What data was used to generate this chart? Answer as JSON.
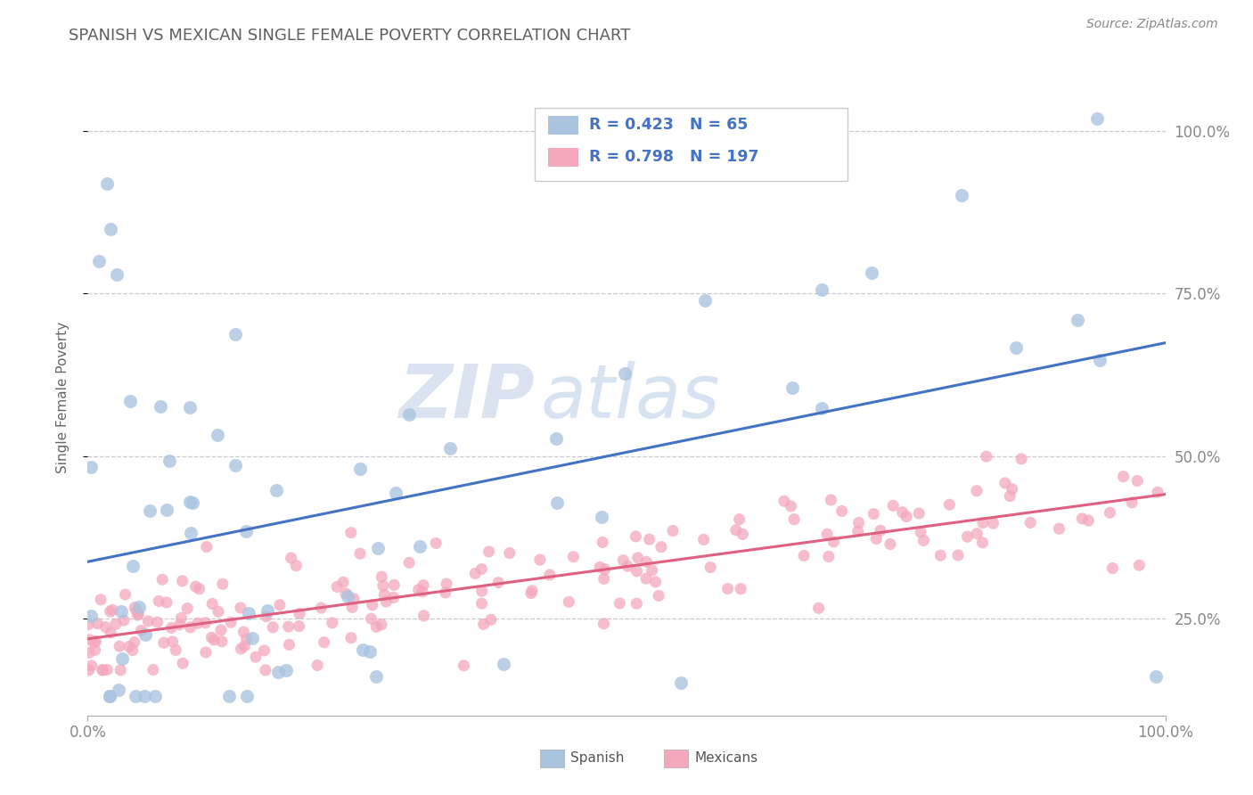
{
  "title": "SPANISH VS MEXICAN SINGLE FEMALE POVERTY CORRELATION CHART",
  "source": "Source: ZipAtlas.com",
  "ylabel": "Single Female Poverty",
  "watermark_zip": "ZIP",
  "watermark_atlas": "atlas",
  "spanish_R": 0.423,
  "spanish_N": 65,
  "mexican_R": 0.798,
  "mexican_N": 197,
  "spanish_color": "#aac4e0",
  "mexican_color": "#f4a8bc",
  "spanish_line_color": "#4472c4",
  "mexican_line_color": "#e06080",
  "legend_text_color": "#4472c4",
  "title_color": "#606060",
  "source_color": "#888888",
  "background_color": "#ffffff",
  "grid_color": "#c8c8d0",
  "spine_color": "#aaaaaa",
  "tick_color": "#aaaaaa",
  "axis_label_color": "#888888",
  "bottom_legend_color": "#555555",
  "xlim": [
    0,
    1
  ],
  "ylim": [
    0.1,
    1.08
  ],
  "ytick_positions": [
    0.25,
    0.5,
    0.75,
    1.0
  ],
  "ytick_labels": [
    "25.0%",
    "50.0%",
    "75.0%",
    "100.0%"
  ]
}
